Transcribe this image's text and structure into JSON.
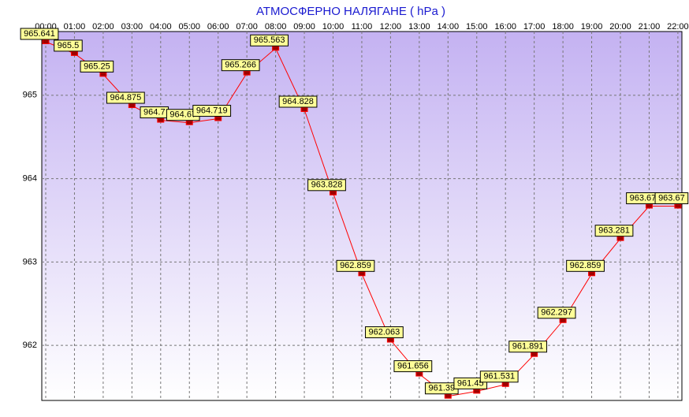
{
  "chart_data": {
    "type": "line",
    "title": "АТМОСФЕРНО НАЛЯГАНЕ  ( hPa )",
    "categories": [
      "00:00",
      "01:00",
      "02:00",
      "03:00",
      "04:00",
      "05:00",
      "06:00",
      "07:00",
      "08:00",
      "09:00",
      "10:00",
      "11:00",
      "12:00",
      "13:00",
      "14:00",
      "15:00",
      "16:00",
      "17:00",
      "18:00",
      "19:00",
      "20:00",
      "21:00",
      "22:00"
    ],
    "series": [
      {
        "name": "hPa",
        "color": "#ff0000",
        "values": [
          965.641,
          965.5,
          965.25,
          964.875,
          964.7,
          964.67,
          964.719,
          965.266,
          965.563,
          964.828,
          963.828,
          962.859,
          962.063,
          961.656,
          961.39,
          961.45,
          961.531,
          961.891,
          962.297,
          962.859,
          963.281,
          963.67,
          963.67
        ]
      }
    ],
    "ylim": [
      961.34,
      965.764
    ],
    "yticks": [
      962,
      963,
      964,
      965
    ],
    "grid": true
  }
}
